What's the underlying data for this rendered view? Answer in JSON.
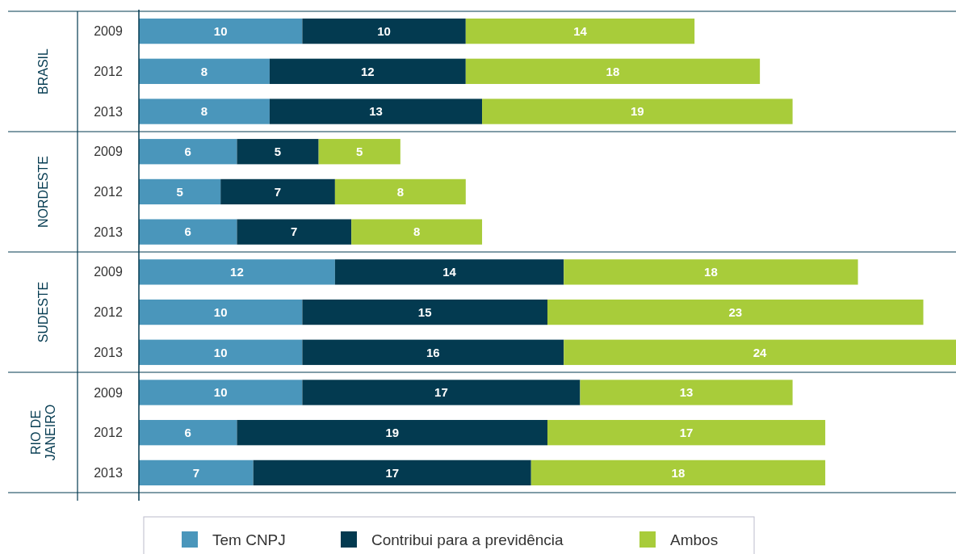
{
  "chart_data": {
    "type": "bar",
    "orientation": "horizontal",
    "stacked": true,
    "data_labels": true,
    "legend": "bottom",
    "categories": [
      "2009",
      "2012",
      "2013",
      "2009",
      "2012",
      "2013",
      "2009",
      "2012",
      "2013",
      "2009",
      "2012",
      "2013"
    ],
    "annotations": [
      "BRASIL",
      "NORDESTE",
      "SUDESTE",
      "RIO DE JANEIRO"
    ],
    "series": [
      {
        "name": "Tem CNPJ",
        "color": "#4a96bb",
        "values": [
          10,
          8,
          8,
          6,
          5,
          6,
          12,
          10,
          10,
          10,
          6,
          7
        ]
      },
      {
        "name": "Contribui para a previdência",
        "color": "#033a50",
        "values": [
          10,
          12,
          13,
          5,
          7,
          7,
          14,
          15,
          16,
          17,
          19,
          17
        ]
      },
      {
        "name": "Ambos",
        "color": "#a8cc3a",
        "values": [
          14,
          18,
          19,
          5,
          8,
          8,
          18,
          23,
          24,
          13,
          17,
          18
        ]
      }
    ]
  }
}
